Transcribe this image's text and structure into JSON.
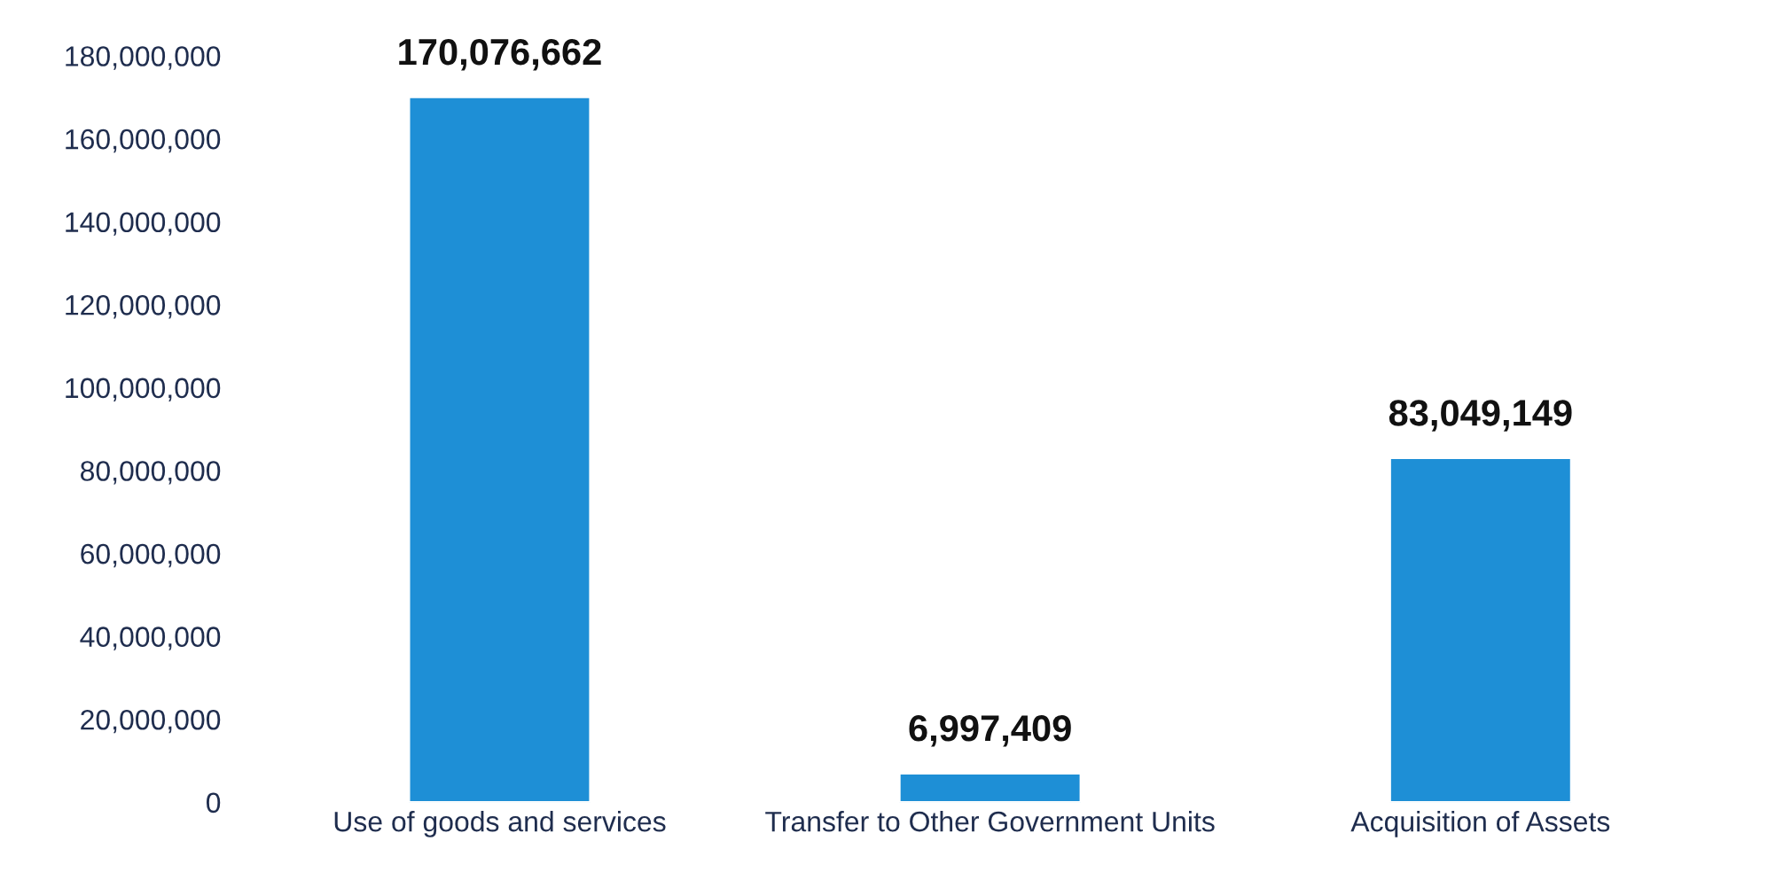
{
  "chart_data": {
    "type": "bar",
    "categories": [
      "Use of goods and services",
      "Transfer to Other Government Units",
      "Acquisition of Assets"
    ],
    "values": [
      170076662,
      6997409,
      83049149
    ],
    "color": "#1e8fd6",
    "ylim": [
      0,
      180000000
    ],
    "yticks": [
      {
        "value": 0,
        "label": "0"
      },
      {
        "value": 20000000,
        "label": "20,000,000"
      },
      {
        "value": 40000000,
        "label": "40,000,000"
      },
      {
        "value": 60000000,
        "label": "60,000,000"
      },
      {
        "value": 80000000,
        "label": "80,000,000"
      },
      {
        "value": 100000000,
        "label": "100,000,000"
      },
      {
        "value": 120000000,
        "label": "120,000,000"
      },
      {
        "value": 140000000,
        "label": "140,000,000"
      },
      {
        "value": 160000000,
        "label": "160,000,000"
      },
      {
        "value": 180000000,
        "label": "180,000,000"
      }
    ],
    "grid": false,
    "value_labels": [
      "170,076,662",
      "6,997,409",
      "83,049,149"
    ]
  }
}
